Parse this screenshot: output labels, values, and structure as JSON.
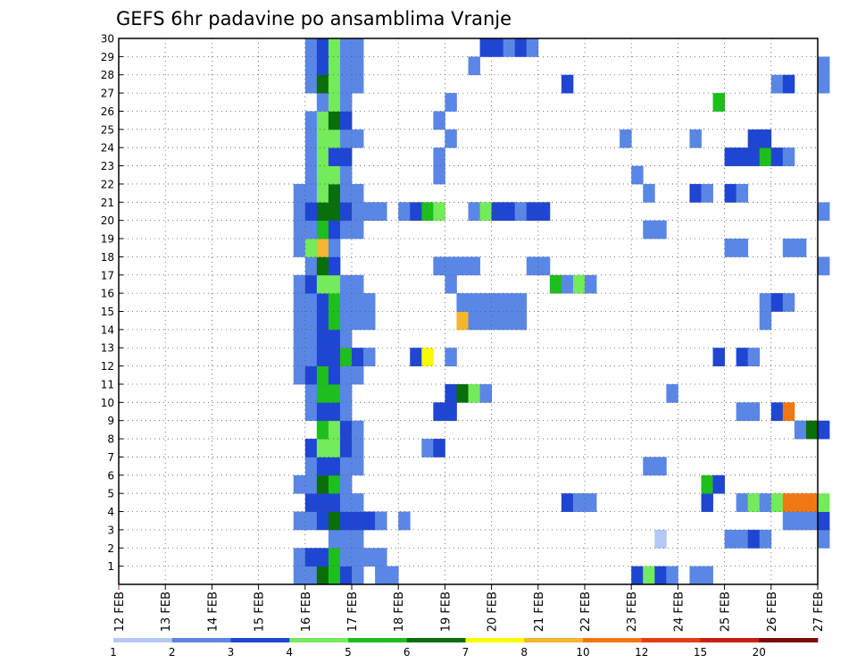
{
  "chart_data": {
    "type": "heatmap",
    "title": "GEFS 6hr padavine po ansamblima Vranje",
    "xlabel": "",
    "ylabel": "",
    "x_tick_labels": [
      "12 FEB",
      "13 FEB",
      "14 FEB",
      "15 FEB",
      "16 FEB",
      "17 FEB",
      "18 FEB",
      "19 FEB",
      "20 FEB",
      "21 FEB",
      "22 FEB",
      "23 FEB",
      "24 FEB",
      "25 FEB",
      "26 FEB",
      "27 FEB"
    ],
    "y_tick_labels": [
      "1",
      "2",
      "3",
      "4",
      "5",
      "6",
      "7",
      "8",
      "9",
      "10",
      "11",
      "12",
      "13",
      "14",
      "15",
      "16",
      "17",
      "18",
      "19",
      "20",
      "21",
      "22",
      "23",
      "24",
      "25",
      "26",
      "27",
      "28",
      "29",
      "30"
    ],
    "time_steps_per_day": 4,
    "legend": {
      "placement": "bottom",
      "labels": [
        "1",
        "2",
        "3",
        "4",
        "5",
        "6",
        "7",
        "8",
        "10",
        "12",
        "15",
        "20"
      ],
      "colors": [
        "#b4c8f5",
        "#5a87e6",
        "#1e46d2",
        "#73eb5a",
        "#1ebe1e",
        "#0a6e0a",
        "#fafa00",
        "#f5b432",
        "#f07814",
        "#e63c14",
        "#c81e14",
        "#7d0a0a"
      ]
    },
    "grid": true,
    "cells": [
      [
        1,
        15,
        2
      ],
      [
        1,
        16,
        4
      ],
      [
        1,
        17,
        5
      ],
      [
        1,
        18,
        3
      ],
      [
        1,
        19,
        2
      ],
      [
        1,
        20,
        3
      ],
      [
        1,
        16,
        2
      ],
      [
        1,
        17,
        6
      ],
      [
        1,
        18,
        5
      ],
      [
        1,
        19,
        3
      ],
      [
        1,
        20,
        2
      ],
      [
        1,
        22,
        2
      ],
      [
        1,
        23,
        2
      ],
      [
        1,
        44,
        3
      ],
      [
        1,
        45,
        4
      ],
      [
        1,
        46,
        3
      ],
      [
        1,
        47,
        2
      ],
      [
        1,
        49,
        2
      ],
      [
        1,
        50,
        2
      ],
      [
        2,
        15,
        2
      ],
      [
        2,
        16,
        3
      ],
      [
        2,
        17,
        3
      ],
      [
        2,
        18,
        5
      ],
      [
        2,
        19,
        2
      ],
      [
        2,
        20,
        2
      ],
      [
        2,
        21,
        2
      ],
      [
        2,
        22,
        2
      ],
      [
        3,
        18,
        2
      ],
      [
        3,
        19,
        2
      ],
      [
        3,
        20,
        2
      ],
      [
        3,
        46,
        1
      ],
      [
        3,
        52,
        2
      ],
      [
        3,
        53,
        2
      ],
      [
        3,
        54,
        3
      ],
      [
        3,
        55,
        2
      ],
      [
        3,
        60,
        2
      ],
      [
        4,
        15,
        2
      ],
      [
        4,
        16,
        2
      ],
      [
        4,
        17,
        3
      ],
      [
        4,
        18,
        6
      ],
      [
        4,
        19,
        3
      ],
      [
        4,
        20,
        3
      ],
      [
        4,
        21,
        3
      ],
      [
        4,
        22,
        2
      ],
      [
        4,
        24,
        2
      ],
      [
        4,
        57,
        2
      ],
      [
        4,
        58,
        2
      ],
      [
        4,
        59,
        2
      ],
      [
        4,
        60,
        3
      ],
      [
        5,
        16,
        3
      ],
      [
        5,
        17,
        3
      ],
      [
        5,
        18,
        3
      ],
      [
        5,
        19,
        2
      ],
      [
        5,
        20,
        2
      ],
      [
        5,
        38,
        3
      ],
      [
        5,
        39,
        2
      ],
      [
        5,
        40,
        2
      ],
      [
        5,
        50,
        3
      ],
      [
        5,
        53,
        2
      ],
      [
        5,
        54,
        4
      ],
      [
        5,
        55,
        2
      ],
      [
        5,
        56,
        4
      ],
      [
        5,
        57,
        9
      ],
      [
        5,
        58,
        9
      ],
      [
        5,
        59,
        9
      ],
      [
        5,
        60,
        4
      ],
      [
        6,
        15,
        2
      ],
      [
        6,
        16,
        2
      ],
      [
        6,
        17,
        6
      ],
      [
        6,
        18,
        5
      ],
      [
        6,
        19,
        2
      ],
      [
        6,
        50,
        5
      ],
      [
        6,
        51,
        3
      ],
      [
        7,
        16,
        2
      ],
      [
        7,
        17,
        3
      ],
      [
        7,
        18,
        3
      ],
      [
        7,
        19,
        2
      ],
      [
        7,
        20,
        2
      ],
      [
        7,
        45,
        2
      ],
      [
        7,
        46,
        2
      ],
      [
        8,
        16,
        3
      ],
      [
        8,
        17,
        4
      ],
      [
        8,
        18,
        4
      ],
      [
        8,
        19,
        3
      ],
      [
        8,
        20,
        2
      ],
      [
        8,
        26,
        2
      ],
      [
        8,
        27,
        3
      ],
      [
        9,
        17,
        5
      ],
      [
        9,
        18,
        4
      ],
      [
        9,
        19,
        3
      ],
      [
        9,
        20,
        2
      ],
      [
        9,
        58,
        2
      ],
      [
        9,
        59,
        6
      ],
      [
        9,
        60,
        3
      ],
      [
        10,
        16,
        2
      ],
      [
        10,
        17,
        3
      ],
      [
        10,
        18,
        3
      ],
      [
        10,
        19,
        2
      ],
      [
        10,
        27,
        3
      ],
      [
        10,
        28,
        3
      ],
      [
        10,
        53,
        2
      ],
      [
        10,
        54,
        2
      ],
      [
        10,
        56,
        3
      ],
      [
        10,
        57,
        9
      ],
      [
        11,
        16,
        2
      ],
      [
        11,
        17,
        5
      ],
      [
        11,
        18,
        5
      ],
      [
        11,
        19,
        2
      ],
      [
        11,
        28,
        3
      ],
      [
        11,
        29,
        6
      ],
      [
        11,
        30,
        4
      ],
      [
        11,
        31,
        2
      ],
      [
        11,
        47,
        2
      ],
      [
        12,
        15,
        2
      ],
      [
        12,
        16,
        3
      ],
      [
        12,
        17,
        5
      ],
      [
        12,
        18,
        3
      ],
      [
        12,
        19,
        2
      ],
      [
        12,
        20,
        2
      ],
      [
        13,
        15,
        2
      ],
      [
        13,
        16,
        2
      ],
      [
        13,
        17,
        3
      ],
      [
        13,
        18,
        3
      ],
      [
        13,
        19,
        5
      ],
      [
        13,
        20,
        3
      ],
      [
        13,
        21,
        2
      ],
      [
        13,
        25,
        3
      ],
      [
        13,
        26,
        7
      ],
      [
        13,
        28,
        2
      ],
      [
        13,
        51,
        3
      ],
      [
        13,
        53,
        3
      ],
      [
        13,
        54,
        2
      ],
      [
        14,
        15,
        2
      ],
      [
        14,
        16,
        2
      ],
      [
        14,
        17,
        3
      ],
      [
        14,
        18,
        3
      ],
      [
        14,
        19,
        2
      ],
      [
        15,
        15,
        2
      ],
      [
        15,
        16,
        2
      ],
      [
        15,
        17,
        3
      ],
      [
        15,
        18,
        5
      ],
      [
        15,
        19,
        2
      ],
      [
        15,
        20,
        2
      ],
      [
        15,
        21,
        2
      ],
      [
        15,
        29,
        8
      ],
      [
        15,
        30,
        2
      ],
      [
        15,
        31,
        2
      ],
      [
        15,
        32,
        2
      ],
      [
        15,
        33,
        2
      ],
      [
        15,
        34,
        2
      ],
      [
        15,
        55,
        2
      ],
      [
        16,
        15,
        2
      ],
      [
        16,
        16,
        2
      ],
      [
        16,
        17,
        3
      ],
      [
        16,
        18,
        5
      ],
      [
        16,
        19,
        2
      ],
      [
        16,
        20,
        2
      ],
      [
        16,
        21,
        2
      ],
      [
        16,
        29,
        2
      ],
      [
        16,
        30,
        2
      ],
      [
        16,
        31,
        2
      ],
      [
        16,
        32,
        2
      ],
      [
        16,
        33,
        2
      ],
      [
        16,
        34,
        2
      ],
      [
        16,
        55,
        2
      ],
      [
        16,
        56,
        3
      ],
      [
        16,
        57,
        2
      ],
      [
        17,
        15,
        2
      ],
      [
        17,
        16,
        3
      ],
      [
        17,
        17,
        4
      ],
      [
        17,
        18,
        4
      ],
      [
        17,
        19,
        2
      ],
      [
        17,
        20,
        2
      ],
      [
        17,
        28,
        2
      ],
      [
        17,
        37,
        5
      ],
      [
        17,
        38,
        2
      ],
      [
        17,
        39,
        4
      ],
      [
        17,
        40,
        2
      ],
      [
        18,
        16,
        2
      ],
      [
        18,
        17,
        6
      ],
      [
        18,
        18,
        3
      ],
      [
        18,
        27,
        2
      ],
      [
        18,
        28,
        2
      ],
      [
        18,
        29,
        2
      ],
      [
        18,
        30,
        2
      ],
      [
        18,
        35,
        2
      ],
      [
        18,
        36,
        2
      ],
      [
        18,
        60,
        2
      ],
      [
        19,
        15,
        2
      ],
      [
        19,
        16,
        4
      ],
      [
        19,
        17,
        8
      ],
      [
        19,
        18,
        2
      ],
      [
        19,
        52,
        2
      ],
      [
        19,
        53,
        2
      ],
      [
        19,
        57,
        2
      ],
      [
        19,
        58,
        2
      ],
      [
        20,
        15,
        2
      ],
      [
        20,
        16,
        2
      ],
      [
        20,
        17,
        5
      ],
      [
        20,
        18,
        3
      ],
      [
        20,
        19,
        2
      ],
      [
        20,
        20,
        2
      ],
      [
        20,
        45,
        2
      ],
      [
        20,
        46,
        2
      ],
      [
        21,
        15,
        2
      ],
      [
        21,
        16,
        3
      ],
      [
        21,
        17,
        6
      ],
      [
        21,
        18,
        6
      ],
      [
        21,
        19,
        3
      ],
      [
        21,
        20,
        2
      ],
      [
        21,
        21,
        2
      ],
      [
        21,
        22,
        2
      ],
      [
        21,
        24,
        2
      ],
      [
        21,
        25,
        3
      ],
      [
        21,
        26,
        5
      ],
      [
        21,
        27,
        4
      ],
      [
        21,
        30,
        2
      ],
      [
        21,
        31,
        4
      ],
      [
        21,
        32,
        3
      ],
      [
        21,
        33,
        3
      ],
      [
        21,
        34,
        2
      ],
      [
        21,
        35,
        3
      ],
      [
        21,
        36,
        3
      ],
      [
        21,
        60,
        2
      ],
      [
        22,
        15,
        2
      ],
      [
        22,
        16,
        2
      ],
      [
        22,
        17,
        4
      ],
      [
        22,
        18,
        6
      ],
      [
        22,
        19,
        2
      ],
      [
        22,
        20,
        2
      ],
      [
        22,
        45,
        2
      ],
      [
        22,
        49,
        3
      ],
      [
        22,
        50,
        2
      ],
      [
        22,
        52,
        3
      ],
      [
        22,
        53,
        2
      ],
      [
        23,
        16,
        2
      ],
      [
        23,
        17,
        4
      ],
      [
        23,
        18,
        4
      ],
      [
        23,
        19,
        2
      ],
      [
        23,
        27,
        2
      ],
      [
        23,
        44,
        2
      ],
      [
        24,
        16,
        2
      ],
      [
        24,
        17,
        4
      ],
      [
        24,
        18,
        3
      ],
      [
        24,
        19,
        3
      ],
      [
        24,
        27,
        2
      ],
      [
        24,
        52,
        3
      ],
      [
        24,
        53,
        3
      ],
      [
        24,
        54,
        3
      ],
      [
        24,
        55,
        5
      ],
      [
        24,
        56,
        3
      ],
      [
        24,
        57,
        2
      ],
      [
        25,
        16,
        2
      ],
      [
        25,
        17,
        4
      ],
      [
        25,
        18,
        4
      ],
      [
        25,
        19,
        2
      ],
      [
        25,
        20,
        2
      ],
      [
        25,
        28,
        2
      ],
      [
        25,
        43,
        2
      ],
      [
        25,
        49,
        2
      ],
      [
        25,
        54,
        3
      ],
      [
        25,
        55,
        3
      ],
      [
        26,
        16,
        2
      ],
      [
        26,
        17,
        4
      ],
      [
        26,
        18,
        6
      ],
      [
        26,
        19,
        3
      ],
      [
        26,
        27,
        2
      ],
      [
        27,
        17,
        2
      ],
      [
        27,
        18,
        4
      ],
      [
        27,
        19,
        2
      ],
      [
        27,
        28,
        2
      ],
      [
        27,
        51,
        5
      ],
      [
        28,
        16,
        2
      ],
      [
        28,
        17,
        6
      ],
      [
        28,
        18,
        4
      ],
      [
        28,
        19,
        2
      ],
      [
        28,
        20,
        2
      ],
      [
        28,
        38,
        3
      ],
      [
        28,
        56,
        2
      ],
      [
        28,
        57,
        3
      ],
      [
        28,
        60,
        2
      ],
      [
        29,
        16,
        2
      ],
      [
        29,
        17,
        3
      ],
      [
        29,
        18,
        4
      ],
      [
        29,
        19,
        2
      ],
      [
        29,
        20,
        2
      ],
      [
        29,
        30,
        2
      ],
      [
        29,
        60,
        2
      ],
      [
        30,
        16,
        2
      ],
      [
        30,
        17,
        3
      ],
      [
        30,
        18,
        4
      ],
      [
        30,
        19,
        2
      ],
      [
        30,
        20,
        2
      ],
      [
        30,
        31,
        3
      ],
      [
        30,
        32,
        3
      ],
      [
        30,
        33,
        2
      ],
      [
        30,
        34,
        3
      ],
      [
        30,
        35,
        2
      ]
    ]
  }
}
